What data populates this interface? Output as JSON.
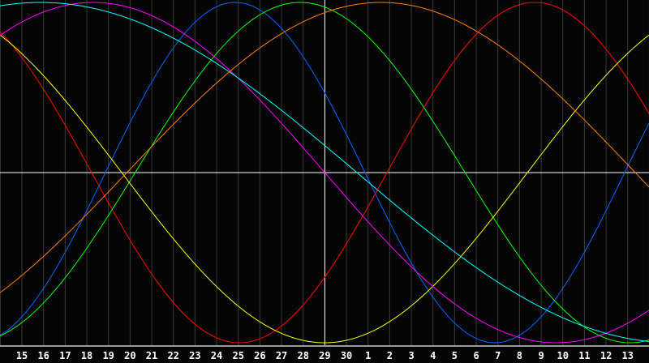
{
  "chart_data": {
    "type": "line",
    "title": "",
    "xlabel": "",
    "ylabel": "",
    "x_tick_labels": [
      "15",
      "16",
      "17",
      "18",
      "19",
      "20",
      "21",
      "22",
      "23",
      "24",
      "25",
      "26",
      "27",
      "28",
      "29",
      "30",
      "1",
      "2",
      "3",
      "4",
      "5",
      "6",
      "7",
      "8",
      "9",
      "10",
      "11",
      "12",
      "13"
    ],
    "today_label": "29",
    "ylim": [
      -1,
      1
    ],
    "grid": true,
    "background": "#050505",
    "gridline_color": "#3a3a3a",
    "axis_color": "#ffffff",
    "series": [
      {
        "color": "#ff0000",
        "curve": "sine",
        "period_days": 27.3,
        "peak_at_tick_index": 23.7
      },
      {
        "color": "#0066ff",
        "curve": "sine",
        "period_days": 24,
        "peak_at_tick_index": 9.86
      },
      {
        "color": "#00ff00",
        "curve": "sine",
        "period_days": 30.5,
        "peak_at_tick_index": 12.86
      },
      {
        "color": "#ffff00",
        "curve": "sine",
        "period_days": 37.5,
        "peak_at_tick_index": -4.76
      },
      {
        "color": "#ff00ff",
        "curve": "sine",
        "period_days": 42.8,
        "peak_at_tick_index": 3.3
      },
      {
        "color": "#00ffff",
        "curve": "sine",
        "period_days": 58.5,
        "peak_at_tick_index": 0.86
      },
      {
        "color": "#ff8000",
        "curve": "sine",
        "period_days": 47,
        "peak_at_tick_index": 16.6
      }
    ]
  }
}
